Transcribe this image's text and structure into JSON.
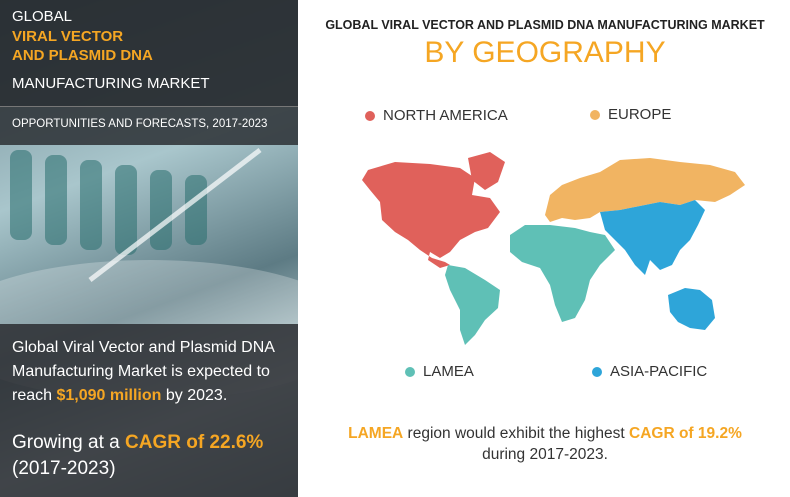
{
  "left_panel": {
    "label": "GLOBAL",
    "title_lines": [
      "VIRAL VECTOR",
      "AND PLASMID DNA"
    ],
    "subtitle": "MANUFACTURING MARKET",
    "forecast_bar": "OPPORTUNITIES AND FORECASTS, 2017-2023",
    "statement": {
      "before": "Global Viral Vector and Plasmid DNA Manufacturing Market is expected to reach",
      "highlight": "$1,090 million",
      "after": "by 2023."
    },
    "growth": {
      "before": "Growing at a",
      "highlight": "CAGR of 22.6%",
      "after": "(2017-2023)"
    }
  },
  "right_panel": {
    "heading": "GLOBAL VIRAL VECTOR AND PLASMID DNA MANUFACTURING MARKET",
    "title": "BY GEOGRAPHY",
    "regions": [
      {
        "name": "NORTH AMERICA",
        "color": "#e0615b"
      },
      {
        "name": "EUROPE",
        "color": "#f1b462"
      },
      {
        "name": "LAMEA",
        "color": "#5fc0b6"
      },
      {
        "name": "ASIA-PACIFIC",
        "color": "#2ea5d9"
      }
    ],
    "footnote": {
      "highlight1": "LAMEA",
      "middle": "region would exhibit the highest",
      "highlight2": "CAGR of 19.2%",
      "after": "during 2017-2023."
    }
  }
}
